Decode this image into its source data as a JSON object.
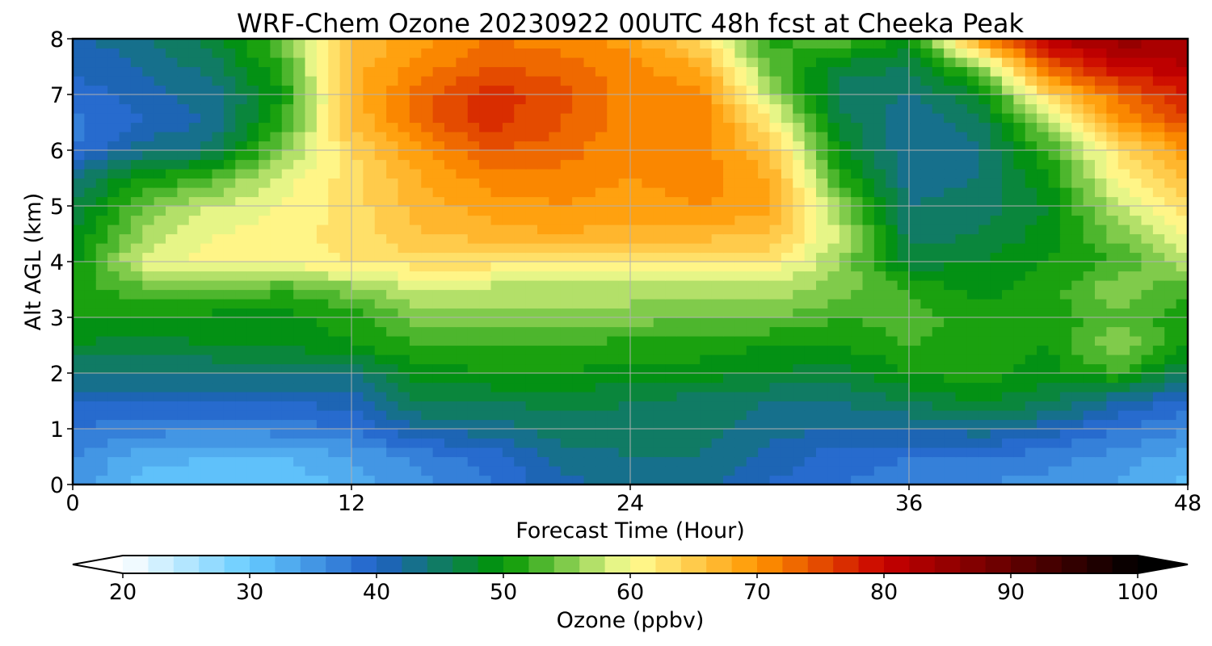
{
  "chart_data": {
    "type": "heatmap",
    "title": "WRF-Chem Ozone  20230922 00UTC 48h fcst at Cheeka Peak",
    "xlabel": "Forecast Time (Hour)",
    "ylabel": "Alt AGL (km)",
    "xlim": [
      0,
      48
    ],
    "ylim": [
      0,
      8
    ],
    "x_ticks": [
      0,
      12,
      24,
      36,
      48
    ],
    "y_ticks": [
      0,
      1,
      2,
      3,
      4,
      5,
      6,
      7,
      8
    ],
    "grid": true,
    "x": [
      0,
      3,
      6,
      9,
      12,
      15,
      18,
      21,
      24,
      27,
      30,
      33,
      36,
      39,
      42,
      45,
      48
    ],
    "y": [
      0,
      0.5,
      1,
      1.5,
      2,
      2.5,
      3,
      3.5,
      4,
      4.5,
      5,
      5.5,
      6,
      6.5,
      7,
      7.5,
      8
    ],
    "z": [
      [
        35,
        31,
        30,
        30,
        33,
        35,
        38,
        41,
        43,
        43,
        40,
        38,
        37,
        36,
        35,
        34,
        31
      ],
      [
        36,
        33,
        32,
        32,
        34,
        37,
        39,
        43,
        44,
        44,
        41,
        39,
        38,
        38,
        37,
        35,
        33
      ],
      [
        38,
        37,
        36,
        37,
        38,
        42,
        43,
        45,
        45,
        45,
        43,
        42,
        42,
        43,
        41,
        38,
        36
      ],
      [
        40,
        40,
        40,
        40,
        41,
        46,
        46,
        47,
        46,
        45,
        44,
        44,
        46,
        48,
        46,
        42,
        39
      ],
      [
        44,
        44,
        44,
        44,
        44,
        49,
        50,
        50,
        49,
        49,
        48,
        47,
        50,
        51,
        49,
        52,
        45
      ],
      [
        48,
        47,
        48,
        48,
        50,
        52,
        52,
        52,
        51,
        51,
        50,
        50,
        52,
        51,
        50,
        56,
        50
      ],
      [
        50,
        50,
        49,
        49,
        51,
        55,
        55,
        55,
        55,
        54,
        54,
        52,
        53,
        51,
        51,
        53,
        51
      ],
      [
        51,
        53,
        55,
        52,
        55,
        58,
        57,
        57,
        57,
        57,
        57,
        55,
        52,
        49,
        51,
        56,
        52
      ],
      [
        49,
        59,
        61,
        61,
        62,
        63,
        63,
        62,
        62,
        62,
        62,
        56,
        47,
        48,
        50,
        52,
        58
      ],
      [
        48,
        56,
        60,
        61,
        63,
        66,
        67,
        68,
        67,
        67,
        66,
        58,
        45,
        46,
        49,
        55,
        60
      ],
      [
        46,
        54,
        58,
        60,
        63,
        67,
        69,
        70,
        69,
        70,
        69,
        56,
        44,
        45,
        48,
        58,
        63
      ],
      [
        44,
        50,
        53,
        59,
        63,
        68,
        71,
        71,
        70,
        71,
        68,
        52,
        43,
        44,
        50,
        61,
        66
      ],
      [
        38,
        43,
        45,
        55,
        64,
        70,
        74,
        73,
        70,
        71,
        66,
        49,
        42,
        44,
        52,
        63,
        70
      ],
      [
        37,
        40,
        42,
        52,
        66,
        73,
        77,
        74,
        71,
        72,
        62,
        47,
        42,
        45,
        57,
        69,
        75
      ],
      [
        39,
        41,
        43,
        50,
        67,
        73,
        77,
        75,
        71,
        71,
        57,
        45,
        44,
        48,
        64,
        73,
        78
      ],
      [
        40,
        42,
        45,
        52,
        67,
        71,
        74,
        73,
        71,
        68,
        54,
        47,
        46,
        55,
        74,
        80,
        82
      ],
      [
        41,
        44,
        47,
        54,
        66,
        69,
        72,
        71,
        69,
        63,
        51,
        54,
        49,
        70,
        82,
        85,
        84
      ]
    ],
    "colorbar": {
      "label": "Ozone  (ppbv)",
      "min": 20,
      "max": 100,
      "step": 2,
      "ticks": [
        "20",
        "30",
        "40",
        "50",
        "60",
        "70",
        "80",
        "90",
        "100"
      ],
      "extend": "both",
      "colors": [
        "#ffffff",
        "#66ccff",
        "#2060c8",
        "#009600",
        "#ffff96",
        "#ff9600",
        "#c80000",
        "#000000"
      ],
      "color_stops": [
        20,
        30,
        40,
        50,
        60,
        70,
        80,
        100
      ]
    }
  }
}
